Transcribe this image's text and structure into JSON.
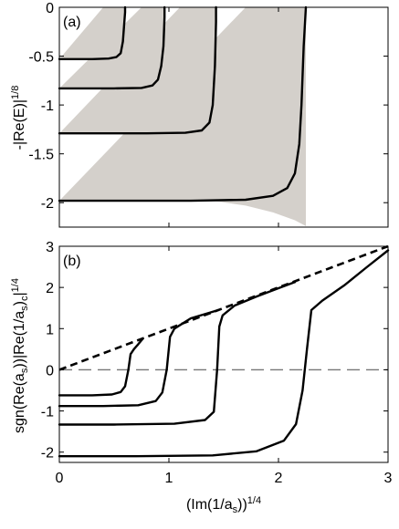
{
  "chart_data": [
    {
      "panel": "(a)",
      "type": "line",
      "xlabel": "",
      "ylabel": "-|Re(E)|^{1/8}",
      "xlim": [
        0,
        3
      ],
      "ylim": [
        -2.25,
        0
      ],
      "yticks": [
        "0",
        "-0.5",
        "-1",
        "-1.5",
        "-2"
      ],
      "ytick_values": [
        0,
        -0.5,
        -1,
        -1.5,
        -2
      ],
      "show_xtick_labels": false,
      "grid": false,
      "colors": {
        "line": "#000000",
        "band": "#d4d0cb"
      },
      "bands": [
        {
          "x": [
            0.0,
            0.4,
            0.5,
            0.55,
            0.58,
            0.6,
            0.6,
            0.58,
            0.55,
            0.5,
            0.4,
            0.0
          ],
          "y": [
            -0.53,
            -0.53,
            -0.53,
            -0.56,
            -0.59,
            -0.59,
            0.0,
            0.0,
            0.0,
            0.0,
            0.0,
            -0.53
          ]
        },
        {
          "x": [
            0.0,
            0.6,
            0.75,
            0.85,
            0.92,
            0.96,
            0.96,
            0.9,
            0.85,
            0.8,
            0.75,
            0.0
          ],
          "y": [
            -0.83,
            -0.83,
            -0.85,
            -0.89,
            -0.93,
            -0.93,
            0.0,
            0.0,
            0.0,
            0.0,
            0.0,
            -0.83
          ]
        },
        {
          "x": [
            0.0,
            0.9,
            1.1,
            1.25,
            1.37,
            1.43,
            1.43,
            1.35,
            1.25,
            1.18,
            1.1,
            0.0
          ],
          "y": [
            -1.29,
            -1.29,
            -1.31,
            -1.36,
            -1.41,
            -1.44,
            0.0,
            0.0,
            0.0,
            0.0,
            0.0,
            -1.29
          ]
        },
        {
          "x": [
            0.0,
            1.4,
            1.7,
            1.95,
            2.15,
            2.25,
            2.25,
            2.15,
            1.85,
            1.75,
            1.7,
            0.0
          ],
          "y": [
            -1.98,
            -1.98,
            -2.03,
            -2.1,
            -2.18,
            -2.24,
            0.0,
            0.0,
            0.0,
            0.0,
            0.0,
            -1.98
          ]
        }
      ],
      "series": [
        {
          "x": [
            0.0,
            0.3,
            0.45,
            0.52,
            0.56,
            0.58,
            0.59,
            0.6,
            0.6
          ],
          "y": [
            -0.53,
            -0.53,
            -0.525,
            -0.51,
            -0.47,
            -0.35,
            -0.2,
            -0.05,
            0.0
          ]
        },
        {
          "x": [
            0.0,
            0.5,
            0.75,
            0.85,
            0.9,
            0.93,
            0.95,
            0.96,
            0.96
          ],
          "y": [
            -0.83,
            -0.83,
            -0.825,
            -0.8,
            -0.74,
            -0.6,
            -0.4,
            -0.1,
            0.0
          ]
        },
        {
          "x": [
            0.0,
            0.8,
            1.15,
            1.3,
            1.37,
            1.4,
            1.42,
            1.43,
            1.43
          ],
          "y": [
            -1.29,
            -1.29,
            -1.285,
            -1.26,
            -1.18,
            -1.0,
            -0.6,
            -0.15,
            0.0
          ]
        },
        {
          "x": [
            0.0,
            1.2,
            1.7,
            1.95,
            2.08,
            2.15,
            2.19,
            2.21,
            2.23,
            2.25
          ],
          "y": [
            -1.98,
            -1.98,
            -1.97,
            -1.93,
            -1.85,
            -1.7,
            -1.4,
            -1.0,
            -0.4,
            0.0
          ]
        }
      ]
    },
    {
      "panel": "(b)",
      "type": "line",
      "xlabel": "(Im(1/a_s))^{1/4}",
      "ylabel": "sgn(Re(a_s))|Re(1/a_s)_c|^{1/4}",
      "xlim": [
        0,
        3
      ],
      "ylim": [
        -2.25,
        3
      ],
      "xticks": [
        "0",
        "1",
        "2",
        "3"
      ],
      "xtick_values": [
        0,
        1,
        2,
        3
      ],
      "yticks": [
        "3",
        "2",
        "1",
        "0",
        "-1",
        "-2"
      ],
      "ytick_values": [
        3,
        2,
        1,
        0,
        -1,
        -2
      ],
      "grid": false,
      "colors": {
        "line": "#000000",
        "dashed": "#000000",
        "zero_line": "#777777"
      },
      "dashed": {
        "x": [
          0,
          3
        ],
        "y": [
          0,
          3
        ]
      },
      "zero_line": {
        "y": 0
      },
      "series": [
        {
          "x": [
            0.0,
            0.3,
            0.48,
            0.56,
            0.6,
            0.63,
            0.65,
            0.68,
            0.72,
            0.76
          ],
          "y": [
            -0.62,
            -0.62,
            -0.6,
            -0.54,
            -0.4,
            0.0,
            0.38,
            0.5,
            0.62,
            0.75
          ]
        },
        {
          "x": [
            0.0,
            0.4,
            0.72,
            0.88,
            0.94,
            0.98,
            1.01,
            1.05,
            1.2,
            1.45
          ],
          "y": [
            -0.88,
            -0.88,
            -0.86,
            -0.76,
            -0.55,
            0.0,
            0.8,
            1.0,
            1.25,
            1.45
          ]
        },
        {
          "x": [
            0.0,
            0.5,
            1.05,
            1.33,
            1.41,
            1.44,
            1.46,
            1.49,
            1.6,
            1.8,
            2.0,
            2.15
          ],
          "y": [
            -1.33,
            -1.33,
            -1.31,
            -1.22,
            -1.02,
            0.0,
            1.05,
            1.32,
            1.56,
            1.78,
            1.98,
            2.13
          ]
        },
        {
          "x": [
            0.0,
            0.7,
            1.4,
            1.8,
            2.05,
            2.16,
            2.22,
            2.26,
            2.3,
            2.4,
            2.6,
            2.8,
            3.0
          ],
          "y": [
            -2.1,
            -2.1,
            -2.08,
            -1.98,
            -1.72,
            -1.32,
            -0.5,
            0.5,
            1.45,
            1.68,
            2.05,
            2.48,
            2.9
          ]
        }
      ]
    }
  ]
}
